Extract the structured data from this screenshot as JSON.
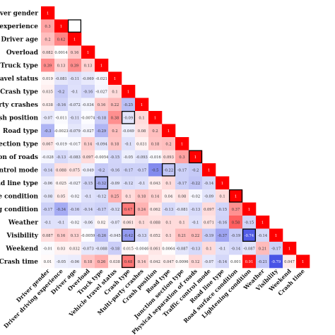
{
  "chart_data": {
    "type": "heatmap",
    "title": "",
    "row_labels": [
      "Driver gender",
      "g experience",
      "Driver age",
      "Overload",
      "Truck type",
      "travel status",
      "Crash type",
      "party crashes",
      "rash position",
      "Road type",
      "section type",
      "tion of roads",
      "control mode",
      "oad line type",
      "uce condition",
      "ng condition",
      "Weather",
      "Visibility",
      "Weekend",
      "Crash time"
    ],
    "column_labels": [
      "Driver gender",
      "Driver driving experience",
      "Driver age",
      "Overload",
      "Truck type",
      "Vehicle travel status",
      "Crash type",
      "Multi-party crashes",
      "Crash position",
      "Road type",
      "Junction section type",
      "Physical separation of roads",
      "Traffic control mode",
      "Road line type",
      "Road surface condition",
      "Lightening condition",
      "Weather",
      "Visibility",
      "Weekend",
      "Crash time"
    ],
    "color_scale": {
      "min": -1,
      "max": 1,
      "negative": "#1f2ee0",
      "neutral": "#ffffff",
      "positive": "#ff0000"
    },
    "values": [
      [
        1
      ],
      [
        0.3,
        1
      ],
      [
        0.2,
        0.42,
        1
      ],
      [
        0.082,
        0.0014,
        0.16,
        1
      ],
      [
        0.39,
        0.13,
        0.39,
        0.13,
        1
      ],
      [
        0.019,
        -0.081,
        -0.11,
        -0.069,
        -0.021,
        1
      ],
      [
        0.035,
        -0.2,
        -0.1,
        -0.16,
        -0.027,
        0.1,
        1
      ],
      [
        0.038,
        -0.16,
        -0.072,
        -0.034,
        0.16,
        0.22,
        -0.25,
        1
      ],
      [
        -0.07,
        -0.011,
        -0.11,
        -0.0074,
        -0.18,
        0.38,
        -0.09,
        0.1,
        1
      ],
      [
        -0.3,
        -0.0023,
        -0.079,
        -0.027,
        -0.29,
        0.2,
        -0.049,
        0.08,
        0.2,
        1
      ],
      [
        0.067,
        -0.019,
        -0.017,
        0.14,
        -0.094,
        0.18,
        -0.1,
        0.031,
        0.18,
        0.2,
        1
      ],
      [
        -0.028,
        -0.13,
        -0.083,
        0.097,
        -0.0054,
        -0.15,
        -0.05,
        -0.093,
        -0.016,
        0.093,
        0.3,
        1
      ],
      [
        -0.14,
        0.088,
        0.075,
        -0.049,
        -0.2,
        -0.16,
        -0.17,
        -0.17,
        -0.5,
        -0.22,
        -0.17,
        -0.2,
        1
      ],
      [
        -0.06,
        0.025,
        -0.027,
        -0.15,
        -0.32,
        -0.09,
        -0.12,
        -0.1,
        0.043,
        0.1,
        -0.17,
        -0.22,
        -0.14,
        1
      ],
      [
        -0.08,
        0.05,
        -0.02,
        -0.1,
        -0.12,
        0.25,
        0.1,
        0.18,
        0.14,
        0.04,
        0.08,
        -0.02,
        -0.09,
        0.1,
        1
      ],
      [
        -0.17,
        -0.34,
        -0.16,
        -0.14,
        -0.17,
        -0.12,
        0.47,
        0.24,
        0.062,
        -0.13,
        -0.081,
        -0.13,
        0.097,
        -0.15,
        0.37,
        1
      ],
      [
        -0.1,
        -0.1,
        -0.02,
        -0.06,
        0.02,
        -0.07,
        0.061,
        0.1,
        0.088,
        0.1,
        0.1,
        -0.1,
        0.071,
        -0.16,
        0.58,
        -0.15,
        1
      ],
      [
        0.087,
        0.16,
        0.13,
        -0.0059,
        -0.26,
        -0.045,
        -0.42,
        -0.13,
        0.052,
        0.1,
        0.21,
        0.22,
        -0.19,
        -0.37,
        -0.19,
        -0.74,
        -0.14,
        1
      ],
      [
        -0.01,
        0.03,
        0.032,
        -0.073,
        -0.088,
        -0.18,
        0.015,
        -0.0046,
        0.061,
        0.0064,
        -0.087,
        -0.13,
        0.1,
        -0.1,
        -0.14,
        -0.087,
        0.21,
        -0.17,
        1
      ],
      [
        0.01,
        -0.05,
        -0.06,
        0.18,
        0.26,
        0.038,
        0.48,
        0.14,
        0.042,
        0.047,
        0.0096,
        0.12,
        -0.07,
        -0.14,
        0.001,
        0.91,
        -0.21,
        -0.79,
        0.047,
        1
      ]
    ],
    "highlighted_cells": [
      [
        1,
        2
      ],
      [
        8,
        6
      ],
      [
        12,
        9
      ],
      [
        11,
        11
      ],
      [
        13,
        4
      ],
      [
        14,
        14
      ],
      [
        15,
        6
      ],
      [
        17,
        6
      ],
      [
        17,
        15
      ],
      [
        19,
        6
      ]
    ]
  }
}
